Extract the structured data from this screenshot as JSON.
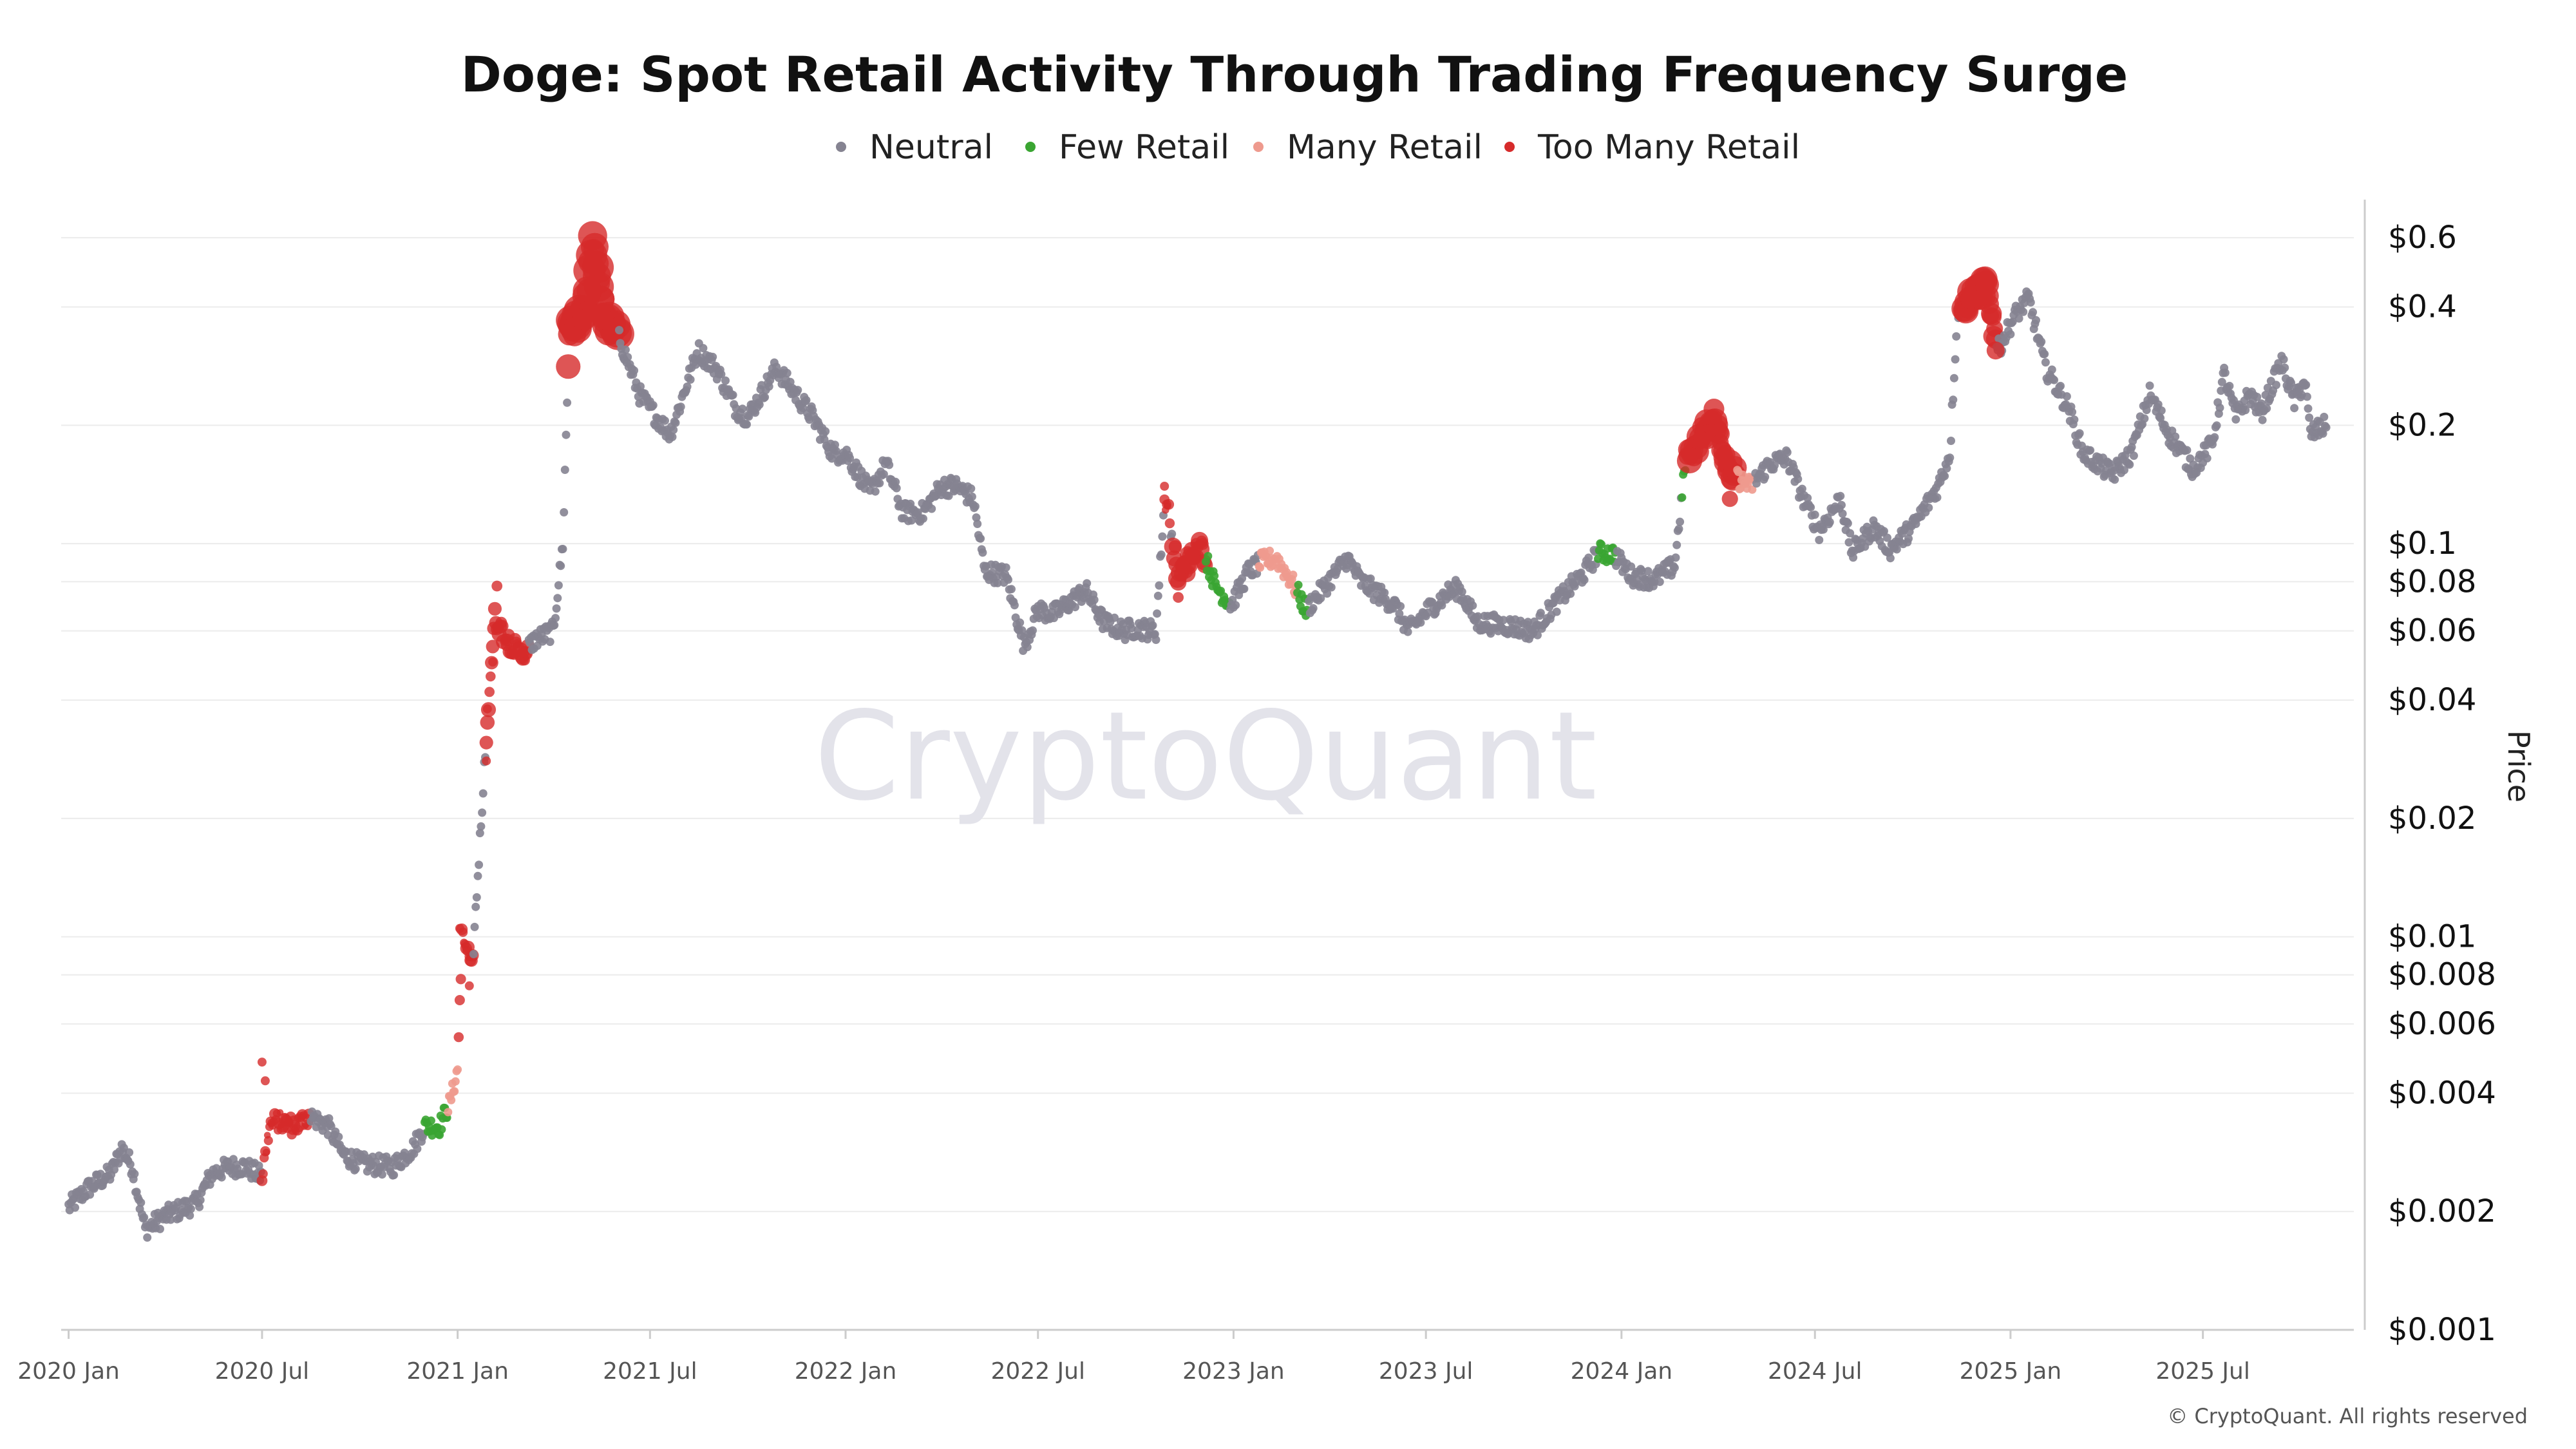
{
  "chart_data": {
    "type": "scatter",
    "title": "Doge: Spot Retail Activity Through Trading Frequency Surge",
    "ylabel": "Price",
    "y_scale": "log",
    "ylim": [
      0.001,
      0.75
    ],
    "x_range": [
      "2019-12-25",
      "2025-11-20"
    ],
    "grid": "horizontal",
    "legend_position": "top-center",
    "watermark": "CryptoQuant",
    "copyright": "© CryptoQuant. All rights reserved",
    "x_ticks": [
      {
        "date": "2020-01-01",
        "label": "2020 Jan"
      },
      {
        "date": "2020-07-01",
        "label": "2020 Jul"
      },
      {
        "date": "2021-01-01",
        "label": "2021 Jan"
      },
      {
        "date": "2021-07-01",
        "label": "2021 Jul"
      },
      {
        "date": "2022-01-01",
        "label": "2022 Jan"
      },
      {
        "date": "2022-07-01",
        "label": "2022 Jul"
      },
      {
        "date": "2023-01-01",
        "label": "2023 Jan"
      },
      {
        "date": "2023-07-01",
        "label": "2023 Jul"
      },
      {
        "date": "2024-01-01",
        "label": "2024 Jan"
      },
      {
        "date": "2024-07-01",
        "label": "2024 Jul"
      },
      {
        "date": "2025-01-01",
        "label": "2025 Jan"
      },
      {
        "date": "2025-07-01",
        "label": "2025 Jul"
      }
    ],
    "y_ticks": [
      {
        "value": 0.6,
        "label": "$0.6"
      },
      {
        "value": 0.4,
        "label": "$0.4"
      },
      {
        "value": 0.2,
        "label": "$0.2"
      },
      {
        "value": 0.1,
        "label": "$0.1"
      },
      {
        "value": 0.08,
        "label": "$0.08"
      },
      {
        "value": 0.06,
        "label": "$0.06"
      },
      {
        "value": 0.04,
        "label": "$0.04"
      },
      {
        "value": 0.02,
        "label": "$0.02"
      },
      {
        "value": 0.01,
        "label": "$0.01"
      },
      {
        "value": 0.008,
        "label": "$0.008"
      },
      {
        "value": 0.006,
        "label": "$0.006"
      },
      {
        "value": 0.004,
        "label": "$0.004"
      },
      {
        "value": 0.002,
        "label": "$0.002"
      },
      {
        "value": 0.001,
        "label": "$0.001"
      }
    ],
    "categories": [
      {
        "key": "neutral",
        "name": "Neutral",
        "color": "#858391"
      },
      {
        "key": "few",
        "name": "Few Retail",
        "color": "#3aa532"
      },
      {
        "key": "many",
        "name": "Many Retail",
        "color": "#ee9a8e"
      },
      {
        "key": "too_many",
        "name": "Too Many Retail",
        "color": "#d62b2b"
      }
    ],
    "price_series": [
      [
        "2020-01-01",
        0.00205
      ],
      [
        "2020-01-20",
        0.0023
      ],
      [
        "2020-02-10",
        0.0025
      ],
      [
        "2020-02-20",
        0.0029
      ],
      [
        "2020-03-01",
        0.0026
      ],
      [
        "2020-03-13",
        0.0018
      ],
      [
        "2020-04-01",
        0.00195
      ],
      [
        "2020-04-30",
        0.0021
      ],
      [
        "2020-05-15",
        0.0025
      ],
      [
        "2020-06-01",
        0.0026
      ],
      [
        "2020-06-15",
        0.0026
      ],
      [
        "2020-07-01",
        0.00245
      ],
      [
        "2020-07-08",
        0.0033
      ],
      [
        "2020-07-15",
        0.0034
      ],
      [
        "2020-08-01",
        0.0033
      ],
      [
        "2020-08-15",
        0.0035
      ],
      [
        "2020-09-01",
        0.0033
      ],
      [
        "2020-09-15",
        0.0028
      ],
      [
        "2020-10-01",
        0.00265
      ],
      [
        "2020-11-01",
        0.0026
      ],
      [
        "2020-11-20",
        0.0029
      ],
      [
        "2020-12-01",
        0.0033
      ],
      [
        "2020-12-15",
        0.0033
      ],
      [
        "2020-12-25",
        0.0038
      ],
      [
        "2021-01-01",
        0.0046
      ],
      [
        "2021-01-05",
        0.01
      ],
      [
        "2021-01-15",
        0.0085
      ],
      [
        "2021-01-28",
        0.033
      ],
      [
        "2021-02-05",
        0.065
      ],
      [
        "2021-02-15",
        0.058
      ],
      [
        "2021-03-01",
        0.052
      ],
      [
        "2021-03-15",
        0.057
      ],
      [
        "2021-04-01",
        0.06
      ],
      [
        "2021-04-10",
        0.1
      ],
      [
        "2021-04-16",
        0.35
      ],
      [
        "2021-05-01",
        0.38
      ],
      [
        "2021-05-08",
        0.58
      ],
      [
        "2021-05-20",
        0.37
      ],
      [
        "2021-06-01",
        0.34
      ],
      [
        "2021-06-21",
        0.24
      ],
      [
        "2021-07-01",
        0.22
      ],
      [
        "2021-07-20",
        0.19
      ],
      [
        "2021-08-15",
        0.31
      ],
      [
        "2021-09-01",
        0.28
      ],
      [
        "2021-09-20",
        0.22
      ],
      [
        "2021-10-01",
        0.21
      ],
      [
        "2021-10-28",
        0.28
      ],
      [
        "2021-11-15",
        0.24
      ],
      [
        "2021-12-01",
        0.21
      ],
      [
        "2021-12-20",
        0.17
      ],
      [
        "2022-01-01",
        0.17
      ],
      [
        "2022-01-24",
        0.135
      ],
      [
        "2022-02-08",
        0.16
      ],
      [
        "2022-02-24",
        0.12
      ],
      [
        "2022-03-15",
        0.12
      ],
      [
        "2022-04-01",
        0.14
      ],
      [
        "2022-04-15",
        0.14
      ],
      [
        "2022-05-01",
        0.13
      ],
      [
        "2022-05-12",
        0.085
      ],
      [
        "2022-06-01",
        0.083
      ],
      [
        "2022-06-18",
        0.055
      ],
      [
        "2022-07-01",
        0.068
      ],
      [
        "2022-07-15",
        0.066
      ],
      [
        "2022-08-15",
        0.076
      ],
      [
        "2022-09-01",
        0.063
      ],
      [
        "2022-09-20",
        0.06
      ],
      [
        "2022-10-01",
        0.061
      ],
      [
        "2022-10-20",
        0.06
      ],
      [
        "2022-10-28",
        0.13
      ],
      [
        "2022-11-01",
        0.12
      ],
      [
        "2022-11-10",
        0.082
      ],
      [
        "2022-11-25",
        0.095
      ],
      [
        "2022-12-01",
        0.1
      ],
      [
        "2022-12-15",
        0.078
      ],
      [
        "2022-12-30",
        0.07
      ],
      [
        "2023-01-15",
        0.085
      ],
      [
        "2023-01-28",
        0.09
      ],
      [
        "2023-02-10",
        0.092
      ],
      [
        "2023-02-25",
        0.08
      ],
      [
        "2023-03-10",
        0.068
      ],
      [
        "2023-03-25",
        0.076
      ],
      [
        "2023-04-18",
        0.092
      ],
      [
        "2023-05-01",
        0.08
      ],
      [
        "2023-06-01",
        0.07
      ],
      [
        "2023-06-15",
        0.06
      ],
      [
        "2023-07-01",
        0.067
      ],
      [
        "2023-07-22",
        0.075
      ],
      [
        "2023-08-01",
        0.077
      ],
      [
        "2023-08-18",
        0.063
      ],
      [
        "2023-09-15",
        0.062
      ],
      [
        "2023-10-10",
        0.06
      ],
      [
        "2023-10-30",
        0.07
      ],
      [
        "2023-11-15",
        0.078
      ],
      [
        "2023-11-28",
        0.085
      ],
      [
        "2023-12-10",
        0.095
      ],
      [
        "2023-12-25",
        0.094
      ],
      [
        "2024-01-10",
        0.083
      ],
      [
        "2024-02-01",
        0.081
      ],
      [
        "2024-02-20",
        0.088
      ],
      [
        "2024-03-01",
        0.16
      ],
      [
        "2024-03-28",
        0.21
      ],
      [
        "2024-04-13",
        0.15
      ],
      [
        "2024-05-01",
        0.14
      ],
      [
        "2024-05-20",
        0.16
      ],
      [
        "2024-06-05",
        0.165
      ],
      [
        "2024-06-20",
        0.13
      ],
      [
        "2024-07-05",
        0.108
      ],
      [
        "2024-07-25",
        0.13
      ],
      [
        "2024-08-05",
        0.095
      ],
      [
        "2024-08-25",
        0.11
      ],
      [
        "2024-09-10",
        0.097
      ],
      [
        "2024-10-01",
        0.11
      ],
      [
        "2024-10-25",
        0.14
      ],
      [
        "2024-11-05",
        0.17
      ],
      [
        "2024-11-12",
        0.39
      ],
      [
        "2024-12-08",
        0.46
      ],
      [
        "2024-12-20",
        0.31
      ],
      [
        "2025-01-05",
        0.38
      ],
      [
        "2025-01-18",
        0.42
      ],
      [
        "2025-02-03",
        0.28
      ],
      [
        "2025-02-25",
        0.22
      ],
      [
        "2025-03-10",
        0.17
      ],
      [
        "2025-04-07",
        0.15
      ],
      [
        "2025-04-25",
        0.17
      ],
      [
        "2025-05-12",
        0.24
      ],
      [
        "2025-05-30",
        0.19
      ],
      [
        "2025-06-22",
        0.155
      ],
      [
        "2025-07-10",
        0.18
      ],
      [
        "2025-07-21",
        0.27
      ],
      [
        "2025-08-01",
        0.21
      ],
      [
        "2025-08-14",
        0.24
      ],
      [
        "2025-08-25",
        0.215
      ],
      [
        "2025-09-13",
        0.29
      ],
      [
        "2025-09-25",
        0.23
      ],
      [
        "2025-10-05",
        0.26
      ],
      [
        "2025-10-10",
        0.19
      ],
      [
        "2025-10-25",
        0.2
      ]
    ],
    "highlight_segments": [
      {
        "start": "2020-07-01",
        "end": "2020-08-15",
        "category": "too_many",
        "size": 1.0
      },
      {
        "start": "2020-12-01",
        "end": "2020-12-22",
        "category": "few",
        "size": 1.0
      },
      {
        "start": "2020-12-22",
        "end": "2021-01-01",
        "category": "many",
        "size": 1.0
      },
      {
        "start": "2021-01-01",
        "end": "2021-01-15",
        "category": "too_many",
        "size": 1.1
      },
      {
        "start": "2021-01-28",
        "end": "2021-03-08",
        "category": "too_many",
        "size": 1.3
      },
      {
        "start": "2021-04-15",
        "end": "2021-06-01",
        "category": "too_many",
        "size": 2.8
      },
      {
        "start": "2022-10-28",
        "end": "2022-11-02",
        "category": "too_many",
        "size": 1.0
      },
      {
        "start": "2022-11-05",
        "end": "2022-12-05",
        "category": "too_many",
        "size": 1.6
      },
      {
        "start": "2022-12-05",
        "end": "2022-12-28",
        "category": "few",
        "size": 1.0
      },
      {
        "start": "2023-01-25",
        "end": "2023-03-01",
        "category": "many",
        "size": 1.0
      },
      {
        "start": "2023-03-01",
        "end": "2023-03-12",
        "category": "few",
        "size": 1.0
      },
      {
        "start": "2023-12-10",
        "end": "2023-12-26",
        "category": "few",
        "size": 1.0
      },
      {
        "start": "2024-02-27",
        "end": "2024-03-02",
        "category": "few",
        "size": 1.0
      },
      {
        "start": "2024-03-02",
        "end": "2024-04-18",
        "category": "too_many",
        "size": 2.2
      },
      {
        "start": "2024-04-18",
        "end": "2024-05-05",
        "category": "many",
        "size": 1.0
      },
      {
        "start": "2024-11-18",
        "end": "2024-12-18",
        "category": "too_many",
        "size": 2.4
      }
    ],
    "extra_points": [
      {
        "date": "2020-07-01",
        "value": 0.0048,
        "category": "too_many",
        "size": 1.0
      },
      {
        "date": "2020-07-04",
        "value": 0.0043,
        "category": "too_many",
        "size": 1.0
      },
      {
        "date": "2021-01-03",
        "value": 0.0105,
        "category": "too_many",
        "size": 1.0
      },
      {
        "date": "2021-01-12",
        "value": 0.0075,
        "category": "too_many",
        "size": 1.0
      },
      {
        "date": "2021-01-28",
        "value": 0.028,
        "category": "too_many",
        "size": 1.0
      },
      {
        "date": "2021-01-29",
        "value": 0.038,
        "category": "too_many",
        "size": 1.0
      },
      {
        "date": "2021-02-03",
        "value": 0.05,
        "category": "too_many",
        "size": 1.0
      },
      {
        "date": "2021-02-07",
        "value": 0.078,
        "category": "too_many",
        "size": 1.2
      },
      {
        "date": "2022-10-28",
        "value": 0.14,
        "category": "too_many",
        "size": 1.0
      },
      {
        "date": "2022-11-10",
        "value": 0.073,
        "category": "too_many",
        "size": 1.2
      },
      {
        "date": "2024-03-28",
        "value": 0.22,
        "category": "too_many",
        "size": 2.3
      },
      {
        "date": "2024-04-12",
        "value": 0.13,
        "category": "too_many",
        "size": 1.8
      },
      {
        "date": "2024-12-18",
        "value": 0.31,
        "category": "too_many",
        "size": 2.0
      }
    ]
  }
}
